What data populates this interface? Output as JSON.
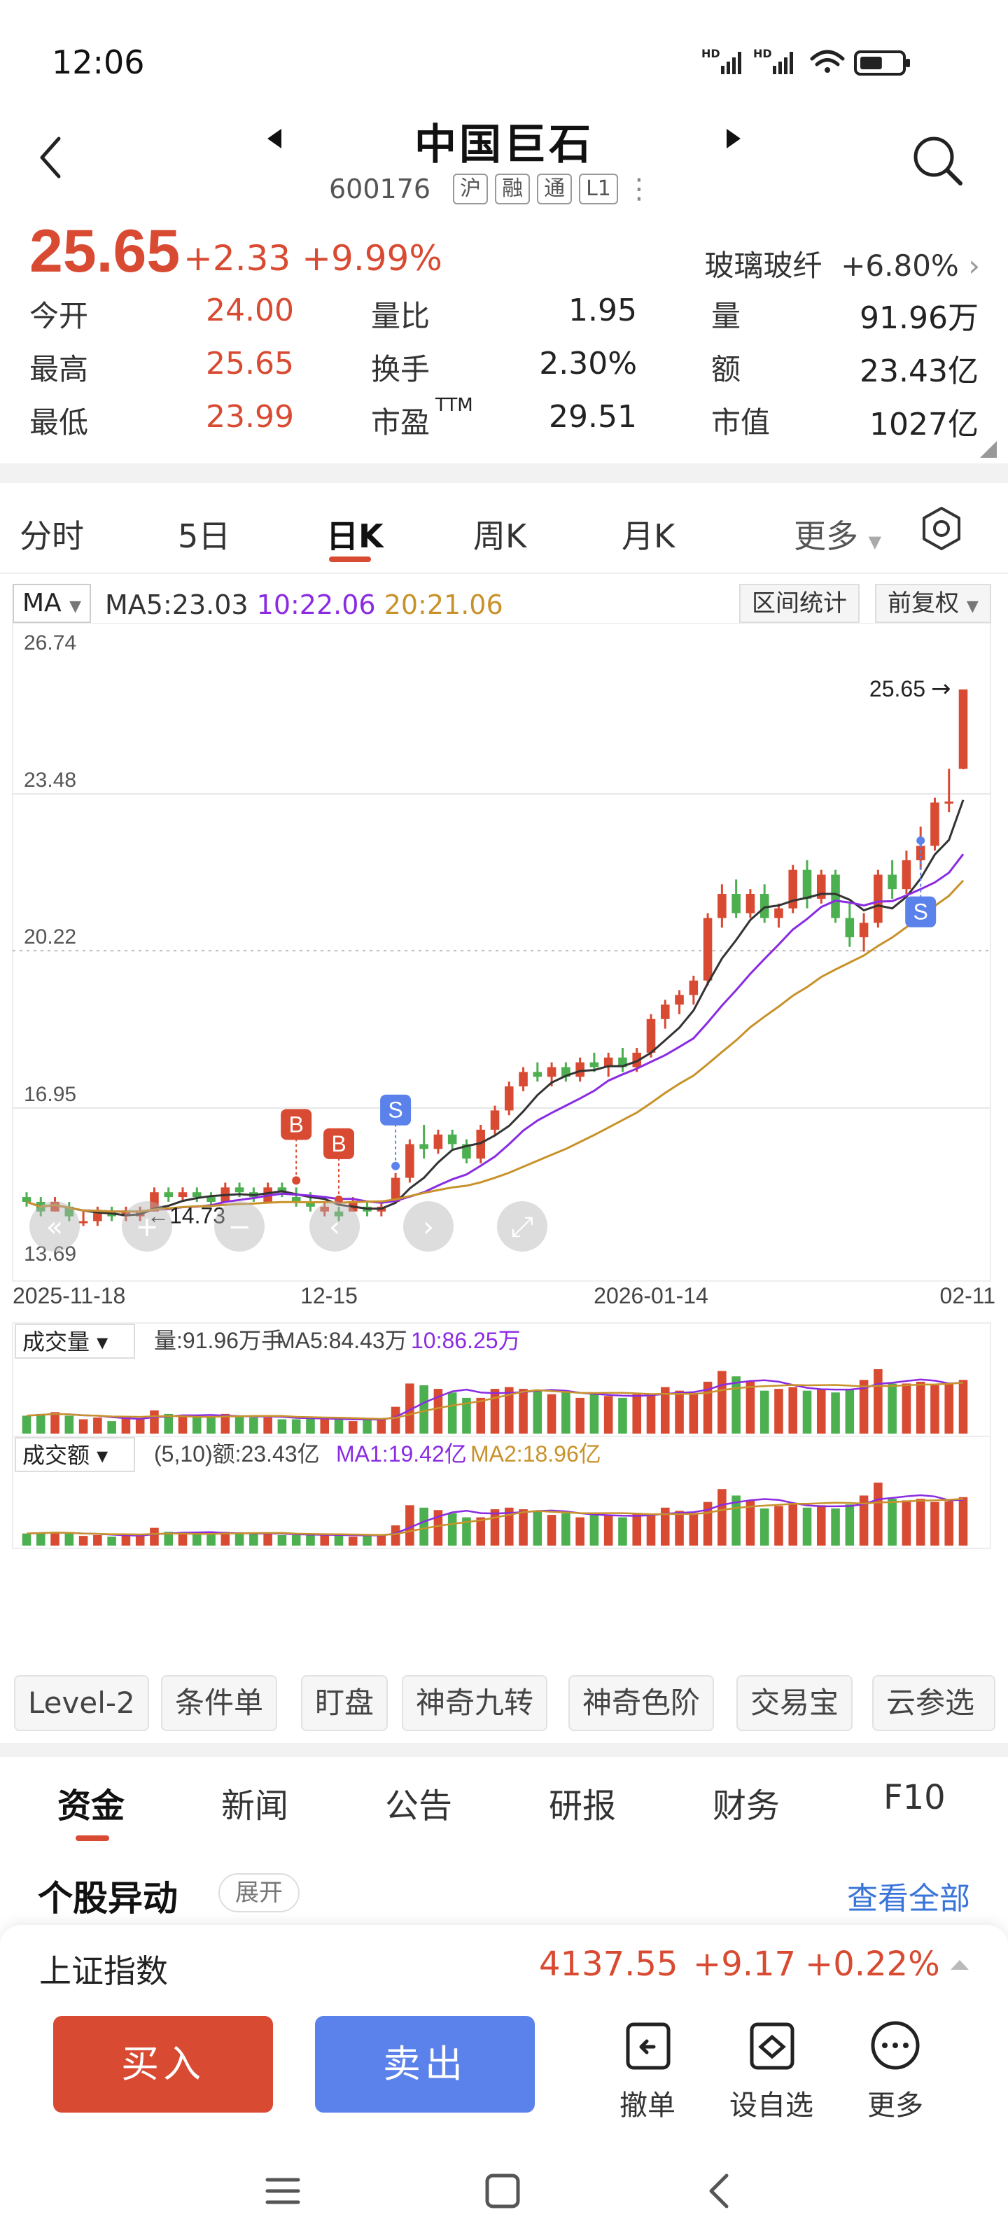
{
  "status": {
    "time": "12:06",
    "battery_level": 0.55
  },
  "header": {
    "title": "中国巨石",
    "code": "600176",
    "tags": [
      "沪",
      "融",
      "通",
      "L1"
    ]
  },
  "quote": {
    "price": "25.65",
    "change": "+2.33",
    "change_pct": "+9.99%",
    "sector_name": "玻璃玻纤",
    "sector_change": "+6.80%",
    "fields": [
      {
        "label": "今开",
        "value": "24.00",
        "color": "#d84a32"
      },
      {
        "label": "最高",
        "value": "25.65",
        "color": "#d84a32"
      },
      {
        "label": "最低",
        "value": "23.99",
        "color": "#d84a32"
      },
      {
        "label": "量比",
        "value": "1.95",
        "color": "#222222"
      },
      {
        "label": "换手",
        "value": "2.30%",
        "color": "#222222"
      },
      {
        "label": "市盈",
        "label_sup": "TTM",
        "value": "29.51",
        "color": "#222222"
      },
      {
        "label": "量",
        "value": "91.96万",
        "color": "#222222"
      },
      {
        "label": "额",
        "value": "23.43亿",
        "color": "#222222"
      },
      {
        "label": "市值",
        "value": "1027亿",
        "color": "#222222"
      }
    ]
  },
  "tabs": [
    "分时",
    "5日",
    "日K",
    "周K",
    "月K",
    "更多"
  ],
  "active_tab": "日K",
  "ma": {
    "selector": "MA",
    "ma5": "MA5:23.03",
    "ma10": "10:22.06",
    "ma20": "20:21.06",
    "range_stats": "区间统计",
    "adjust": "前复权"
  },
  "colors": {
    "up": "#d84a32",
    "down": "#4caf50",
    "ma5": "#333333",
    "ma10": "#8a2be2",
    "ma20": "#c8922a",
    "blue": "#5b82ea"
  },
  "chart_data": {
    "type": "candlestick",
    "y_ticks": [
      "26.74",
      "23.48",
      "20.22",
      "16.95",
      "13.69"
    ],
    "ylim": [
      13.69,
      26.74
    ],
    "x_labels": [
      "2025-11-18",
      "12-15",
      "2026-01-14",
      "02-11"
    ],
    "last_price_label": "25.65",
    "low_label": "14.73",
    "markers": [
      {
        "type": "B",
        "index": 19
      },
      {
        "type": "B",
        "index": 22
      },
      {
        "type": "S",
        "index": 26
      },
      {
        "type": "S",
        "index": 63
      }
    ],
    "candles": [
      [
        15.1,
        15.2,
        14.9,
        15.0
      ],
      [
        15.0,
        15.1,
        14.7,
        14.8
      ],
      [
        14.8,
        15.1,
        14.8,
        15.0
      ],
      [
        14.9,
        15.0,
        14.6,
        14.7
      ],
      [
        14.6,
        14.8,
        14.5,
        14.6
      ],
      [
        14.6,
        14.9,
        14.5,
        14.8
      ],
      [
        14.8,
        14.9,
        14.6,
        14.7
      ],
      [
        14.7,
        14.9,
        14.6,
        14.8
      ],
      [
        14.7,
        14.9,
        14.6,
        14.8
      ],
      [
        14.8,
        15.3,
        14.8,
        15.2
      ],
      [
        15.2,
        15.3,
        15.0,
        15.1
      ],
      [
        15.1,
        15.3,
        15.0,
        15.2
      ],
      [
        15.2,
        15.3,
        15.0,
        15.1
      ],
      [
        15.1,
        15.2,
        14.9,
        15.0
      ],
      [
        15.0,
        15.4,
        15.0,
        15.3
      ],
      [
        15.3,
        15.4,
        15.1,
        15.2
      ],
      [
        15.2,
        15.3,
        15.0,
        15.1
      ],
      [
        15.0,
        15.4,
        15.0,
        15.3
      ],
      [
        15.3,
        15.4,
        15.1,
        15.2
      ],
      [
        15.1,
        15.3,
        14.9,
        15.0
      ],
      [
        15.0,
        15.2,
        14.8,
        14.9
      ],
      [
        14.8,
        15.0,
        14.7,
        14.9
      ],
      [
        14.8,
        14.9,
        14.6,
        14.7
      ],
      [
        14.8,
        15.1,
        14.8,
        15.0
      ],
      [
        14.9,
        15.0,
        14.7,
        14.8
      ],
      [
        14.8,
        15.0,
        14.7,
        14.9
      ],
      [
        15.0,
        15.6,
        15.0,
        15.5
      ],
      [
        15.5,
        16.3,
        15.4,
        16.2
      ],
      [
        16.2,
        16.6,
        15.9,
        16.1
      ],
      [
        16.1,
        16.5,
        16.0,
        16.4
      ],
      [
        16.4,
        16.5,
        16.1,
        16.2
      ],
      [
        16.2,
        16.3,
        15.8,
        15.9
      ],
      [
        15.9,
        16.6,
        15.8,
        16.5
      ],
      [
        16.5,
        17.0,
        16.4,
        16.9
      ],
      [
        16.9,
        17.5,
        16.8,
        17.4
      ],
      [
        17.4,
        17.8,
        17.3,
        17.7
      ],
      [
        17.7,
        17.9,
        17.5,
        17.6
      ],
      [
        17.6,
        17.9,
        17.4,
        17.8
      ],
      [
        17.8,
        17.9,
        17.5,
        17.6
      ],
      [
        17.6,
        18.0,
        17.5,
        17.9
      ],
      [
        17.9,
        18.1,
        17.7,
        17.8
      ],
      [
        17.8,
        18.1,
        17.6,
        18.0
      ],
      [
        18.0,
        18.2,
        17.7,
        17.8
      ],
      [
        17.8,
        18.2,
        17.7,
        18.1
      ],
      [
        18.1,
        18.9,
        18.0,
        18.8
      ],
      [
        18.8,
        19.2,
        18.6,
        19.1
      ],
      [
        19.1,
        19.4,
        18.9,
        19.3
      ],
      [
        19.3,
        19.7,
        19.1,
        19.6
      ],
      [
        19.6,
        21.0,
        19.5,
        20.9
      ],
      [
        20.9,
        21.6,
        20.7,
        21.4
      ],
      [
        21.4,
        21.7,
        20.9,
        21.0
      ],
      [
        21.0,
        21.5,
        20.9,
        21.4
      ],
      [
        21.4,
        21.6,
        20.8,
        20.9
      ],
      [
        20.9,
        21.2,
        20.7,
        21.1
      ],
      [
        21.1,
        22.0,
        21.0,
        21.9
      ],
      [
        21.9,
        22.1,
        21.1,
        21.3
      ],
      [
        21.3,
        21.9,
        21.2,
        21.8
      ],
      [
        21.8,
        21.9,
        20.8,
        20.9
      ],
      [
        20.9,
        21.2,
        20.3,
        20.5
      ],
      [
        20.5,
        21.0,
        20.2,
        20.8
      ],
      [
        20.8,
        21.9,
        20.7,
        21.8
      ],
      [
        21.8,
        22.1,
        21.3,
        21.5
      ],
      [
        21.5,
        22.3,
        21.4,
        22.1
      ],
      [
        22.1,
        22.8,
        21.9,
        22.4
      ],
      [
        22.4,
        23.4,
        22.3,
        23.3
      ],
      [
        23.3,
        24.0,
        23.1,
        23.32
      ],
      [
        24.0,
        25.65,
        23.99,
        25.65
      ]
    ],
    "volume": {
      "label": "成交量",
      "legend": "量:91.96万手",
      "ma5": "MA5:84.43万",
      "ma10": "10:86.25万"
    },
    "amount": {
      "label": "成交额",
      "legend": "(5,10)额:23.43亿",
      "ma1": "MA1:19.42亿",
      "ma2": "MA2:18.96亿"
    },
    "volume_values": [
      20,
      22,
      24,
      20,
      16,
      18,
      14,
      18,
      16,
      26,
      22,
      20,
      18,
      18,
      22,
      20,
      18,
      18,
      16,
      16,
      18,
      16,
      16,
      14,
      16,
      16,
      30,
      56,
      54,
      50,
      46,
      40,
      40,
      50,
      52,
      50,
      48,
      44,
      46,
      40,
      44,
      42,
      40,
      44,
      44,
      52,
      48,
      44,
      58,
      70,
      64,
      58,
      48,
      50,
      52,
      48,
      50,
      46,
      50,
      60,
      72,
      56,
      56,
      58,
      54,
      56,
      60
    ],
    "amount_values": [
      15,
      16,
      17,
      15,
      12,
      13,
      11,
      13,
      12,
      22,
      17,
      16,
      14,
      14,
      17,
      16,
      14,
      14,
      13,
      13,
      14,
      13,
      13,
      11,
      13,
      13,
      25,
      50,
      47,
      44,
      40,
      35,
      35,
      45,
      47,
      45,
      42,
      38,
      40,
      35,
      38,
      37,
      35,
      39,
      39,
      47,
      43,
      39,
      54,
      70,
      62,
      56,
      46,
      49,
      51,
      47,
      50,
      46,
      51,
      62,
      78,
      58,
      56,
      58,
      54,
      55,
      60
    ]
  },
  "chart_tools": [
    "Level-2",
    "条件单",
    "盯盘",
    "神奇九转",
    "神奇色阶",
    "交易宝",
    "云参选"
  ],
  "info_tabs": [
    "资金",
    "新闻",
    "公告",
    "研报",
    "财务",
    "F10"
  ],
  "anomaly": {
    "title": "个股异动",
    "expand": "展开",
    "view_all": "查看全部"
  },
  "index": {
    "name": "上证指数",
    "value": "4137.55",
    "change": "+9.17",
    "change_pct": "+0.22%"
  },
  "actions": {
    "buy": "买入",
    "sell": "卖出",
    "cancel": "撤单",
    "watch": "设自选",
    "more": "更多"
  }
}
